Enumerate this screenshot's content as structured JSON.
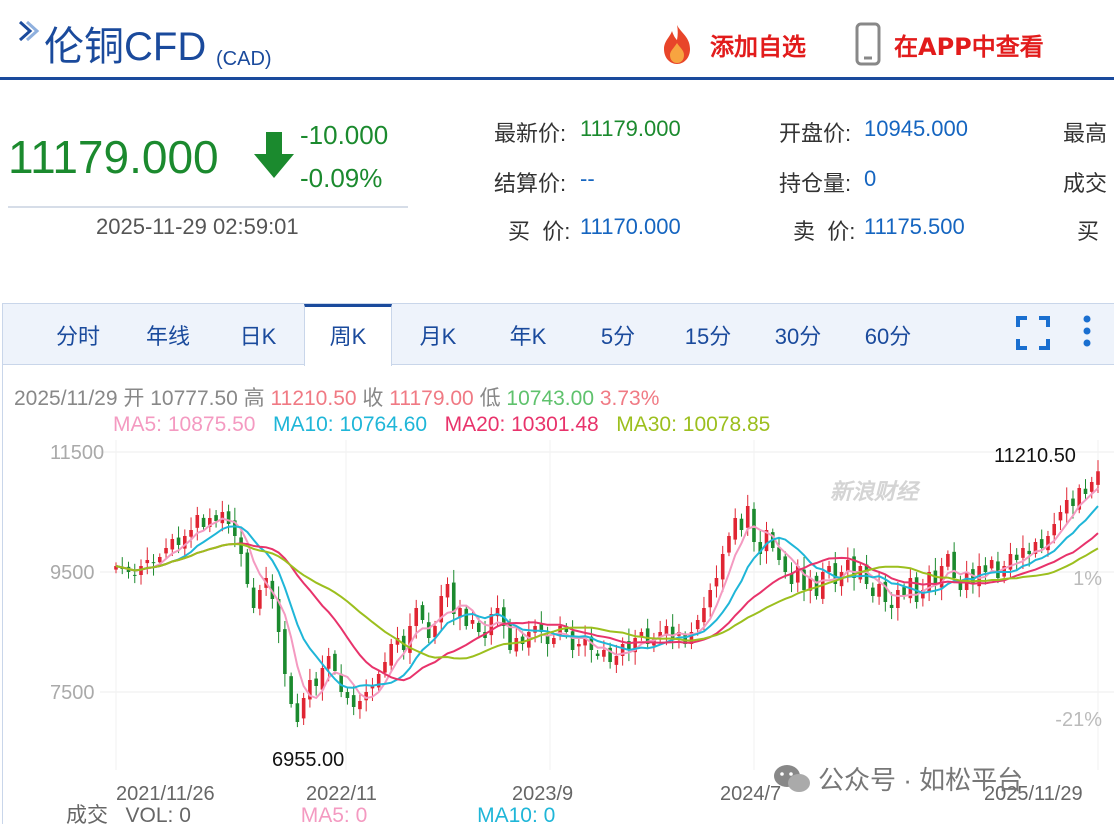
{
  "header": {
    "title": "伦铜CFD",
    "subtitle": "(CAD)",
    "add_watchlist": "添加自选",
    "view_in_app": "在APP中查看"
  },
  "quote": {
    "price": "11179.000",
    "change": "-10.000",
    "change_pct": "-0.09%",
    "timestamp": "2025-11-29 02:59:01",
    "fields": {
      "latest_label": "最新价:",
      "latest": "11179.000",
      "open_label": "开盘价:",
      "open": "10945.000",
      "high_label": "最高",
      "settle_label": "结算价:",
      "settle": "--",
      "oi_label": "持仓量:",
      "oi": "0",
      "vol_label": "成交",
      "bid_label": "买  价:",
      "bid": "11170.000",
      "ask_label": "卖  价:",
      "ask": "11175.500",
      "bid2_label": "买"
    }
  },
  "tabs": [
    "分时",
    "年线",
    "日K",
    "周K",
    "月K",
    "年K",
    "5分",
    "15分",
    "30分",
    "60分"
  ],
  "active_tab": "周K",
  "ohlc": {
    "date": "2025/11/29",
    "open_label": "开",
    "open": "10777.50",
    "high_label": "高",
    "high": "11210.50",
    "close_label": "收",
    "close": "11179.00",
    "low_label": "低",
    "low": "10743.00",
    "amplitude": "3.73%"
  },
  "ma": {
    "ma5": "MA5: 10875.50",
    "ma10": "MA10: 10764.60",
    "ma20": "MA20: 10301.48",
    "ma30": "MA30: 10078.85"
  },
  "volume": {
    "label": "成交",
    "vol": "VOL: 0",
    "ma5": "MA5: 0",
    "ma10": "MA10: 0"
  },
  "watermarks": {
    "sina": "新浪财经",
    "wechat": "公众号 · 如松平台"
  },
  "colors": {
    "brand_blue": "#1a4a9c",
    "down_green": "#1b8a2e",
    "up_red": "#e02533",
    "ma5": "#f49ac1",
    "ma10": "#1fb6d8",
    "ma20": "#e8336b",
    "ma30": "#9cbf1e"
  },
  "chart_data": {
    "type": "candlestick",
    "period": "weekly",
    "y_ticks": [
      11500,
      9500,
      7500
    ],
    "y_range": [
      6700,
      11600
    ],
    "pct_ticks": [
      "1%",
      "-21%"
    ],
    "x_labels": [
      "2021/11/26",
      "2022/11",
      "2023/9",
      "2024/7",
      "2025/11/29"
    ],
    "max_label": "11210.50",
    "min_label": "6955.00",
    "closes": [
      9600,
      9550,
      9500,
      9450,
      9600,
      9700,
      9650,
      9750,
      9900,
      10050,
      9950,
      10100,
      10200,
      10450,
      10250,
      10400,
      10350,
      10500,
      10300,
      10100,
      9800,
      9300,
      8900,
      9200,
      9400,
      9050,
      8500,
      7800,
      7300,
      7000,
      7400,
      7700,
      7600,
      7900,
      8100,
      7850,
      7500,
      7400,
      7250,
      7350,
      7500,
      7600,
      7800,
      8000,
      8300,
      8400,
      8200,
      8600,
      8900,
      8700,
      8400,
      8600,
      9100,
      9300,
      8800,
      8900,
      8600,
      8700,
      8500,
      8400,
      8800,
      8900,
      8600,
      8200,
      8400,
      8300,
      8500,
      8600,
      8500,
      8300,
      8400,
      8600,
      8500,
      8200,
      8300,
      8400,
      8200,
      8100,
      8200,
      8000,
      8100,
      8300,
      8200,
      8400,
      8500,
      8300,
      8400,
      8500,
      8600,
      8400,
      8500,
      8300,
      8500,
      8700,
      8900,
      9200,
      9400,
      9800,
      10100,
      10400,
      10200,
      10600,
      10000,
      9800,
      10200,
      9900,
      9700,
      9500,
      9300,
      9600,
      9200,
      9400,
      9100,
      9500,
      9600,
      9300,
      9500,
      9700,
      9400,
      9600,
      9300,
      9100,
      9300,
      9000,
      8900,
      9200,
      9100,
      9400,
      9000,
      9200,
      9500,
      9300,
      9600,
      9800,
      9400,
      9200,
      9500,
      9300,
      9600,
      9500,
      9700,
      9400,
      9600,
      9800,
      9700,
      9900,
      9800,
      10000,
      9900,
      10100,
      10300,
      10500,
      10700,
      10600,
      10900,
      10800,
      11000,
      11179
    ]
  }
}
